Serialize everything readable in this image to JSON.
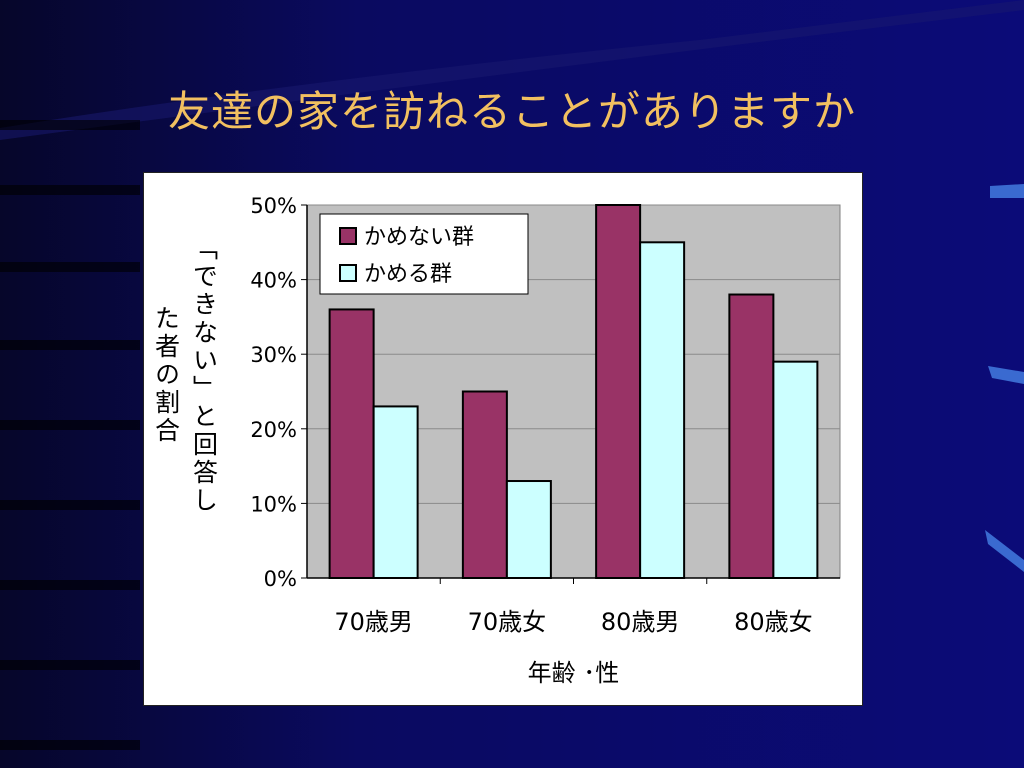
{
  "slide": {
    "title": "友達の家を訪ねることがありますか",
    "title_color": "#f2c060",
    "background_color": "#0a0a6e"
  },
  "chart_data": {
    "type": "bar",
    "title": "",
    "categories": [
      "70歳男",
      "70歳女",
      "80歳男",
      "80歳女"
    ],
    "series": [
      {
        "name": "かめない群",
        "values": [
          36,
          25,
          50,
          38
        ],
        "color": "#993366"
      },
      {
        "name": "かめる群",
        "values": [
          23,
          13,
          45,
          29
        ],
        "color": "#ccffff"
      }
    ],
    "xlabel": "年齢 ･性",
    "ylabel_lines": [
      "「できない」と回答し",
      "た者の割合"
    ],
    "ylim": [
      0,
      50
    ],
    "yticks": [
      0,
      10,
      20,
      30,
      40,
      50
    ],
    "ytick_labels": [
      "0%",
      "10%",
      "20%",
      "30%",
      "40%",
      "50%"
    ],
    "grid": true,
    "plot_background": "#c0c0c0",
    "legend_position": "top-left"
  }
}
